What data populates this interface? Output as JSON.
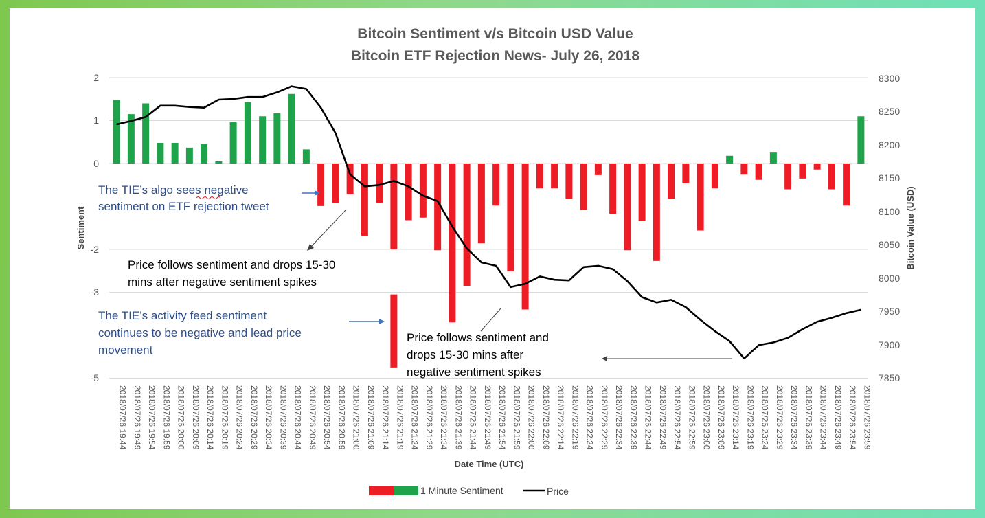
{
  "chart_data": {
    "type": "bar+line",
    "title": "Bitcoin Sentiment v/s Bitcoin USD Value",
    "subtitle": "Bitcoin ETF Rejection News- July 26, 2018",
    "xlabel": "Date Time (UTC)",
    "ylabel_left": "Sentiment",
    "ylabel_right": "Bitcoin Value (USD)",
    "y_left_ticks": [
      "2",
      "1",
      "0",
      "-2",
      "-3",
      "-5"
    ],
    "y_left_range": [
      -5,
      2
    ],
    "y_right_ticks": [
      "8300",
      "8250",
      "8200",
      "8150",
      "8100",
      "8050",
      "8000",
      "7950",
      "7900",
      "7850"
    ],
    "y_right_range": [
      7850,
      8300
    ],
    "categories": [
      "2018/07/26 19:44",
      "2018/07/26 19:49",
      "2018/07/26 19:54",
      "2018/07/26 19:59",
      "2018/07/26 20:00",
      "2018/07/26 20:09",
      "2018/07/26 20:14",
      "2018/07/26 20:19",
      "2018/07/26 20:24",
      "2018/07/26 20:29",
      "2018/07/26 20:34",
      "2018/07/26 20:39",
      "2018/07/26 20:44",
      "2018/07/26 20:49",
      "2018/07/26 20:54",
      "2018/07/26 20:59",
      "2018/07/26 21:00",
      "2018/07/26 21:09",
      "2018/07/26 21:14",
      "2018/07/26 21:19",
      "2018/07/26 21:24",
      "2018/07/26 21:29",
      "2018/07/26 21:34",
      "2018/07/26 21:39",
      "2018/07/26 21:44",
      "2018/07/26 21:49",
      "2018/07/26 21:54",
      "2018/07/26 21:59",
      "2018/07/26 22:00",
      "2018/07/26 22:09",
      "2018/07/26 22:14",
      "2018/07/26 22:19",
      "2018/07/26 22:24",
      "2018/07/26 22:29",
      "2018/07/26 22:34",
      "2018/07/26 22:39",
      "2018/07/26 22:44",
      "2018/07/26 22:49",
      "2018/07/26 22:54",
      "2018/07/26 22:59",
      "2018/07/26 23:00",
      "2018/07/26 23:09",
      "2018/07/26 23:14",
      "2018/07/26 23:19",
      "2018/07/26 23:24",
      "2018/07/26 23:29",
      "2018/07/26 23:34",
      "2018/07/26 23:39",
      "2018/07/26 23:44",
      "2018/07/26 23:49",
      "2018/07/26 23:54",
      "2018/07/26 23:59"
    ],
    "sentiment": [
      1.48,
      1.15,
      1.4,
      0.48,
      0.48,
      0.37,
      0.45,
      0.05,
      0.96,
      1.43,
      1.1,
      1.17,
      1.62,
      0.33,
      -0.99,
      -0.92,
      -0.72,
      -1.68,
      -0.92,
      -2.0,
      -1.32,
      -1.26,
      -2.02,
      -3.7,
      -2.85,
      -1.86,
      -0.98,
      -2.51,
      -3.4,
      -0.58,
      -0.58,
      -0.82,
      -1.08,
      -0.27,
      -1.17,
      -2.02,
      -1.34,
      -2.27,
      -0.82,
      -0.46,
      -1.56,
      -0.58,
      0.18,
      -0.26,
      -0.38,
      0.27,
      -0.6,
      -0.35,
      -0.14,
      -0.6,
      -0.98,
      1.1
    ],
    "extra_bar": {
      "category": "2018/07/26 21:19",
      "from": -3.05,
      "to": -4.75
    },
    "price": [
      8230,
      8235,
      8241,
      8258,
      8258,
      8256,
      8255,
      8267,
      8268,
      8271,
      8271,
      8278,
      8287,
      8283,
      8255,
      8217,
      8155,
      8137,
      8139,
      8145,
      8137,
      8123,
      8115,
      8077,
      8044,
      8023,
      8018,
      7986,
      7991,
      8002,
      7997,
      7996,
      8016,
      8018,
      8013,
      7995,
      7971,
      7963,
      7967,
      7956,
      7937,
      7920,
      7905,
      7879,
      7899,
      7903,
      7910,
      7923,
      7934,
      7940,
      7947,
      7952
    ],
    "positive_color": "#1fa34a",
    "negative_color": "#ee1c24",
    "line_color": "#000000",
    "legend": {
      "sentiment_label": "1 Minute Sentiment",
      "price_label": "Price",
      "position": "bottom"
    }
  },
  "annotations": {
    "a1_line1": "The TIE’s algo sees negative",
    "a1_line2": "sentiment on ETF rejection tweet",
    "a2_line1": "Price follows sentiment and drops 15-30",
    "a2_line2": "mins after negative sentiment spikes",
    "a3_line1": "The TIE’s activity feed sentiment",
    "a3_line2": "continues to be negative and lead price",
    "a3_line3": "movement",
    "a4_line1": "Price follows sentiment and",
    "a4_line2": "drops 15-30 mins after",
    "a4_line3": "negative sentiment spikes",
    "blue_color": "#2e4f8a",
    "arrow_color": "#4472c4"
  }
}
